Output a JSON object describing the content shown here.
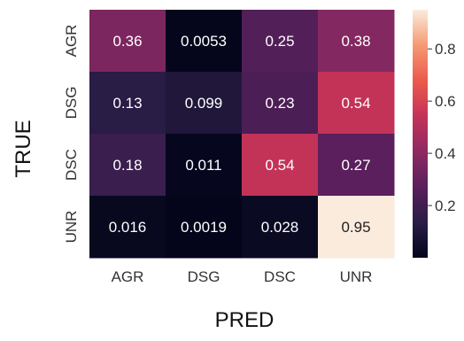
{
  "chart_data": {
    "type": "heatmap",
    "xlabel": "PRED",
    "ylabel": "TRUE",
    "x_categories": [
      "AGR",
      "DSG",
      "DSC",
      "UNR"
    ],
    "y_categories": [
      "AGR",
      "DSG",
      "DSC",
      "UNR"
    ],
    "values": [
      [
        0.36,
        0.0053,
        0.25,
        0.38
      ],
      [
        0.13,
        0.099,
        0.23,
        0.54
      ],
      [
        0.18,
        0.011,
        0.54,
        0.27
      ],
      [
        0.016,
        0.0019,
        0.028,
        0.95
      ]
    ],
    "value_labels": [
      [
        "0.36",
        "0.0053",
        "0.25",
        "0.38"
      ],
      [
        "0.13",
        "0.099",
        "0.23",
        "0.54"
      ],
      [
        "0.18",
        "0.011",
        "0.54",
        "0.27"
      ],
      [
        "0.016",
        "0.0019",
        "0.028",
        "0.95"
      ]
    ],
    "colorbar": {
      "range": [
        0.0,
        0.95
      ],
      "ticks": [
        0.2,
        0.4,
        0.6,
        0.8
      ],
      "tick_labels": [
        "0.2",
        "0.4",
        "0.6",
        "0.8"
      ]
    },
    "colormap": [
      "#03051a",
      "#2b1d47",
      "#5a1f5c",
      "#8e2a62",
      "#c43358",
      "#ec5a4c",
      "#f59a73",
      "#faebdd"
    ]
  }
}
